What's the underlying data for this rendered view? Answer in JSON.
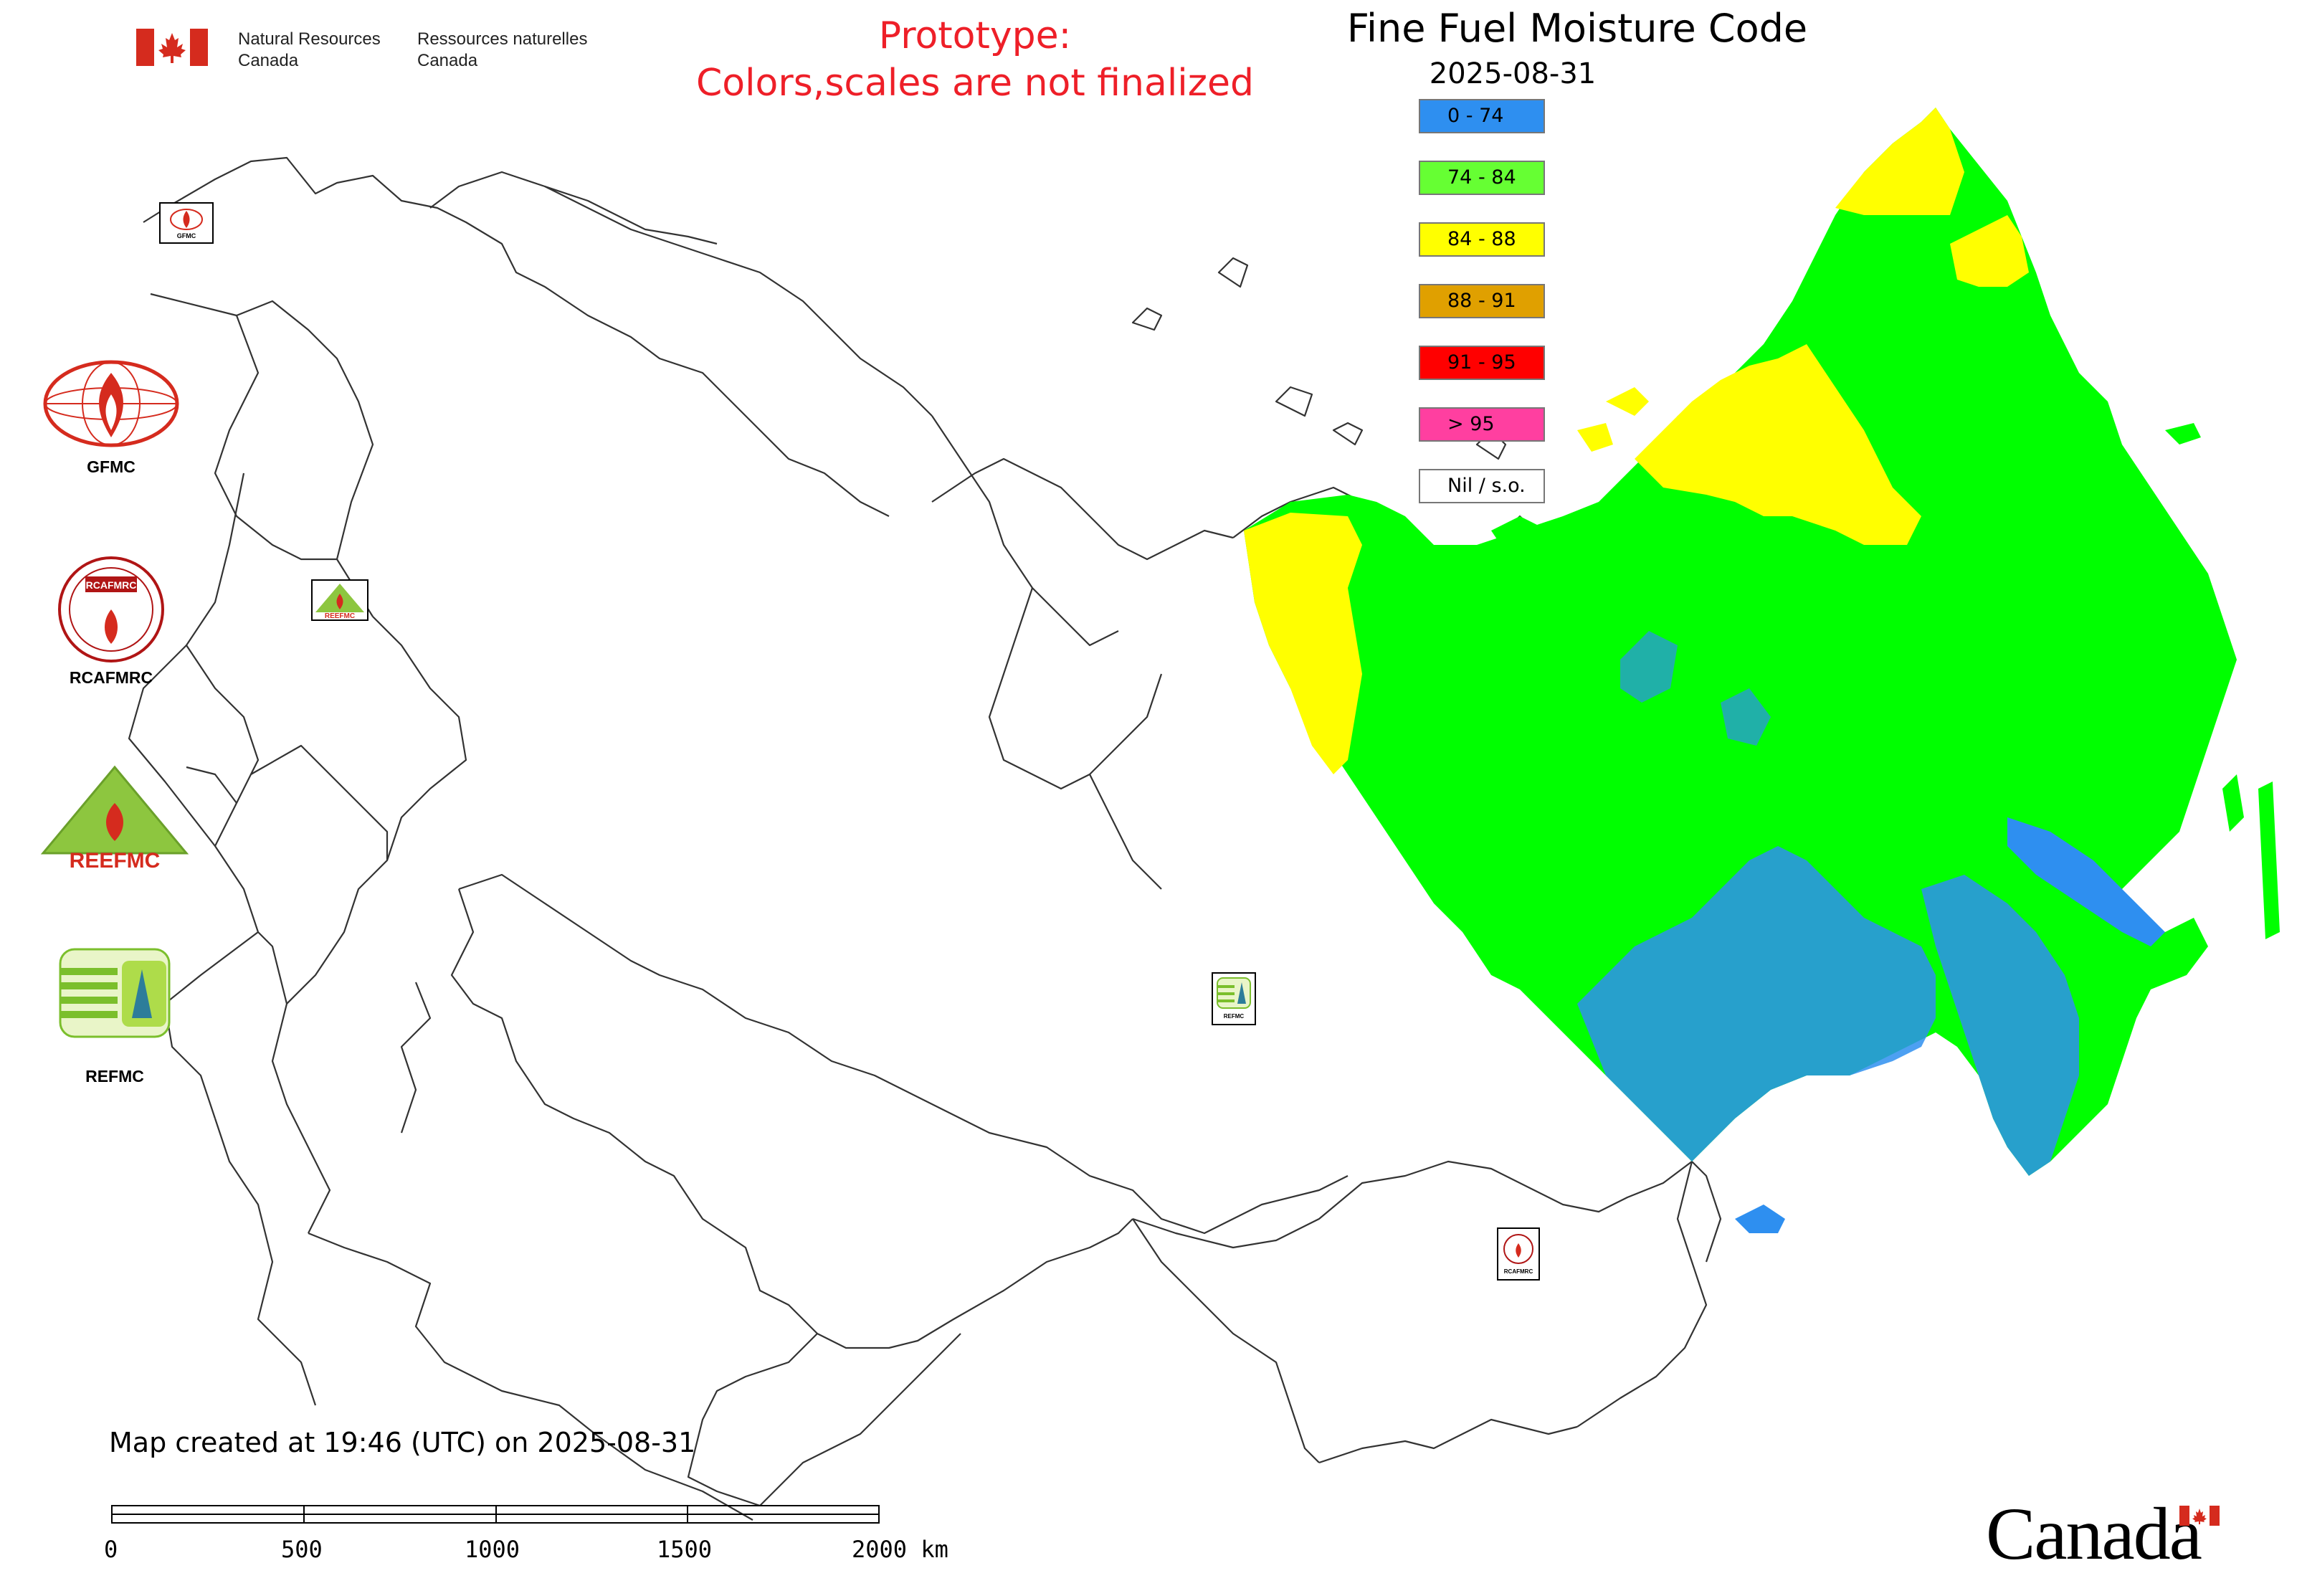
{
  "header": {
    "department_en": [
      "Natural Resources",
      "Canada"
    ],
    "department_fr": [
      "Ressources naturelles",
      "Canada"
    ],
    "prototype_line1": "Prototype:",
    "prototype_line2": "Colors,scales are not finalized",
    "title": "Fine Fuel Moisture Code",
    "date": "2025-08-31"
  },
  "legend": [
    {
      "label": "0 - 74",
      "color": "#2e8ff0"
    },
    {
      "label": "74 - 84",
      "color": "#66ff33"
    },
    {
      "label": "84 - 88",
      "color": "#ffff00"
    },
    {
      "label": "88 - 91",
      "color": "#e0a000"
    },
    {
      "label": "91 - 95",
      "color": "#ff0000"
    },
    {
      "label": "> 95",
      "color": "#ff3fa0"
    },
    {
      "label": "Nil / s.o.",
      "color": "#ffffff"
    }
  ],
  "logos": {
    "gfmc": "GFMC",
    "rcafmrc": "RCAFMRC",
    "reefmc": "REEFMC",
    "refmc": "REFMC"
  },
  "map_markers": {
    "gfmc": "GFMC",
    "reefmc": "REEFMC",
    "refmc": "REFMC",
    "rcafmrc": "RCAFMRC"
  },
  "footer": {
    "created": "Map created at 19:46 (UTC) on 2025-08-31",
    "scale_ticks": [
      "0",
      "500",
      "1000",
      "1500",
      "2000 km"
    ],
    "wordmark": "Canada"
  },
  "colors": {
    "prototype_text": "#ee1f28",
    "canada_red": "#d52b1e",
    "fill_green": "#00ff00",
    "fill_yellow": "#ffff00",
    "fill_blue": "#2e8ff0"
  }
}
